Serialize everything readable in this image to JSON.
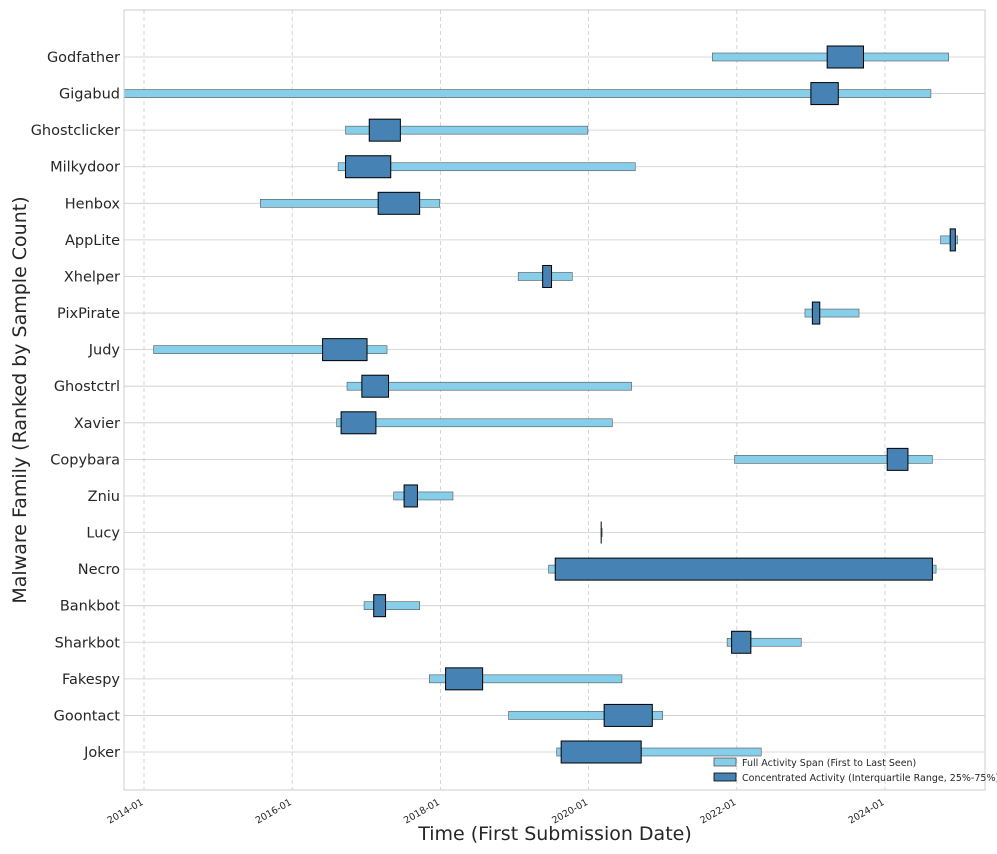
{
  "chart_data": {
    "type": "range-bar",
    "xlabel": "Time (First Submission Date)",
    "ylabel": "Malware Family (Ranked by Sample Count)",
    "xlim": [
      2013.73,
      2025.35
    ],
    "x_ticks": [
      {
        "value": 2014.0,
        "label": "2014-01"
      },
      {
        "value": 2016.0,
        "label": "2016-01"
      },
      {
        "value": 2018.0,
        "label": "2018-01"
      },
      {
        "value": 2020.0,
        "label": "2020-01"
      },
      {
        "value": 2022.0,
        "label": "2022-01"
      },
      {
        "value": 2024.0,
        "label": "2024-01"
      }
    ],
    "legend": {
      "position": "bottom-right",
      "full_label": "Full Activity Span (First to Last Seen)",
      "iqr_label": "Concentrated Activity (Interquartile Range, 25%-75%)"
    },
    "colors": {
      "full": "#87ceeb",
      "iqr": "#4682b4",
      "edge": "#000000",
      "grid": "#cccccc"
    },
    "families": [
      {
        "name": "Godfather",
        "start": 2021.67,
        "end": 2024.86,
        "q1": 2023.22,
        "q3": 2023.71
      },
      {
        "name": "Gigabud",
        "start": 2013.73,
        "end": 2024.62,
        "q1": 2023.0,
        "q3": 2023.37
      },
      {
        "name": "Ghostclicker",
        "start": 2016.72,
        "end": 2019.99,
        "q1": 2017.04,
        "q3": 2017.46
      },
      {
        "name": "Milkydoor",
        "start": 2016.62,
        "end": 2020.63,
        "q1": 2016.72,
        "q3": 2017.33
      },
      {
        "name": "Henbox",
        "start": 2015.57,
        "end": 2017.99,
        "q1": 2017.16,
        "q3": 2017.72
      },
      {
        "name": "AppLite",
        "start": 2024.75,
        "end": 2024.98,
        "q1": 2024.88,
        "q3": 2024.95
      },
      {
        "name": "Xhelper",
        "start": 2019.05,
        "end": 2019.78,
        "q1": 2019.38,
        "q3": 2019.5
      },
      {
        "name": "PixPirate",
        "start": 2022.92,
        "end": 2023.65,
        "q1": 2023.02,
        "q3": 2023.12
      },
      {
        "name": "Judy",
        "start": 2014.13,
        "end": 2017.28,
        "q1": 2016.41,
        "q3": 2017.01
      },
      {
        "name": "Ghostctrl",
        "start": 2016.74,
        "end": 2020.58,
        "q1": 2016.94,
        "q3": 2017.3
      },
      {
        "name": "Xavier",
        "start": 2016.6,
        "end": 2020.32,
        "q1": 2016.66,
        "q3": 2017.13
      },
      {
        "name": "Copybara",
        "start": 2021.97,
        "end": 2024.64,
        "q1": 2024.03,
        "q3": 2024.31
      },
      {
        "name": "Zniu",
        "start": 2017.37,
        "end": 2018.17,
        "q1": 2017.51,
        "q3": 2017.69
      },
      {
        "name": "Lucy",
        "start": 2020.17,
        "end": 2020.18,
        "q1": 2020.17,
        "q3": 2020.18
      },
      {
        "name": "Necro",
        "start": 2019.46,
        "end": 2024.69,
        "q1": 2019.55,
        "q3": 2024.64
      },
      {
        "name": "Bankbot",
        "start": 2016.97,
        "end": 2017.72,
        "q1": 2017.1,
        "q3": 2017.26
      },
      {
        "name": "Sharkbot",
        "start": 2021.87,
        "end": 2022.87,
        "q1": 2021.93,
        "q3": 2022.19
      },
      {
        "name": "Fakespy",
        "start": 2017.85,
        "end": 2020.45,
        "q1": 2018.07,
        "q3": 2018.57
      },
      {
        "name": "Goontact",
        "start": 2018.92,
        "end": 2021.0,
        "q1": 2020.21,
        "q3": 2020.86
      },
      {
        "name": "Joker",
        "start": 2019.57,
        "end": 2022.33,
        "q1": 2019.63,
        "q3": 2020.71
      }
    ]
  }
}
